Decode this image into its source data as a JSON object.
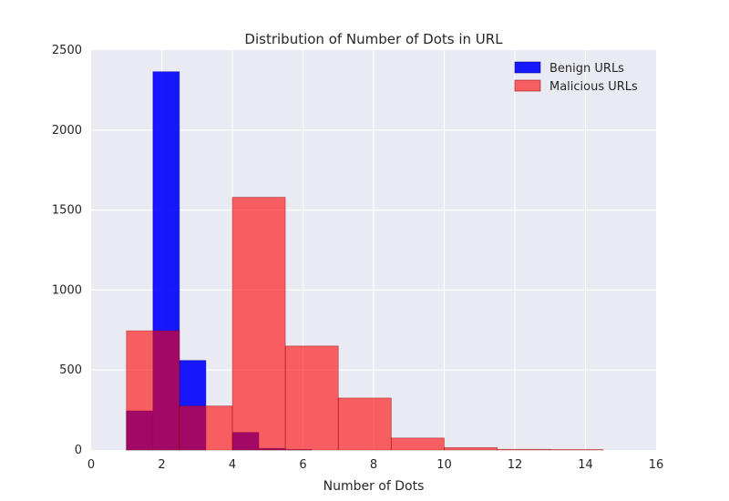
{
  "chart_data": {
    "type": "bar",
    "title": "Distribution of Number of Dots in URL",
    "xlabel": "Number of Dots",
    "ylabel": "",
    "xlim": [
      0,
      16
    ],
    "ylim": [
      0,
      2500
    ],
    "xticks": [
      0,
      2,
      4,
      6,
      8,
      10,
      12,
      14,
      16
    ],
    "yticks": [
      0,
      500,
      1000,
      1500,
      2000,
      2500
    ],
    "grid": true,
    "legend_position": "top-right",
    "series": [
      {
        "name": "Benign URLs",
        "color": "#0000ff",
        "opacity": 0.9,
        "bins": [
          {
            "x0": 1.0,
            "x1": 1.75,
            "value": 245
          },
          {
            "x0": 1.75,
            "x1": 2.5,
            "value": 2365
          },
          {
            "x0": 2.5,
            "x1": 3.25,
            "value": 560
          },
          {
            "x0": 3.25,
            "x1": 4.0,
            "value": 0
          },
          {
            "x0": 4.0,
            "x1": 4.75,
            "value": 110
          },
          {
            "x0": 4.75,
            "x1": 5.5,
            "value": 10
          },
          {
            "x0": 5.5,
            "x1": 6.25,
            "value": 3
          }
        ]
      },
      {
        "name": "Malicious URLs",
        "color": "#ff0000",
        "opacity": 0.6,
        "bins": [
          {
            "x0": 1.0,
            "x1": 2.5,
            "value": 745
          },
          {
            "x0": 2.5,
            "x1": 4.0,
            "value": 275
          },
          {
            "x0": 4.0,
            "x1": 5.5,
            "value": 1580
          },
          {
            "x0": 5.5,
            "x1": 7.0,
            "value": 650
          },
          {
            "x0": 7.0,
            "x1": 8.5,
            "value": 325
          },
          {
            "x0": 8.5,
            "x1": 10.0,
            "value": 75
          },
          {
            "x0": 10.0,
            "x1": 11.5,
            "value": 15
          },
          {
            "x0": 11.5,
            "x1": 13.0,
            "value": 4
          },
          {
            "x0": 13.0,
            "x1": 14.5,
            "value": 3
          }
        ]
      }
    ]
  }
}
